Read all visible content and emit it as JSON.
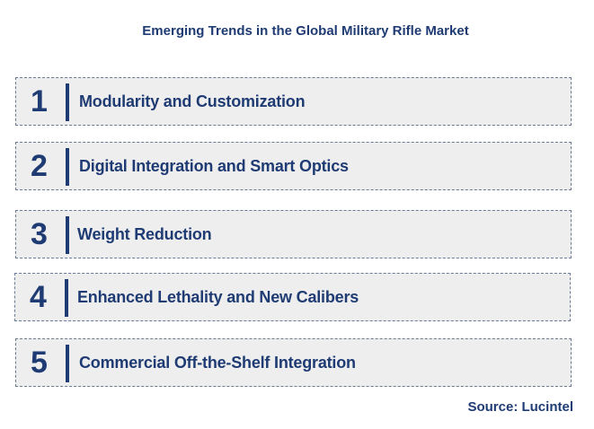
{
  "title": "Emerging Trends in the Global Military Rifle Market",
  "trends": [
    {
      "number": "1",
      "label": "Modularity and Customization"
    },
    {
      "number": "2",
      "label": "Digital Integration and Smart Optics"
    },
    {
      "number": "3",
      "label": "Weight Reduction"
    },
    {
      "number": "4",
      "label": "Enhanced Lethality and New Calibers"
    },
    {
      "number": "5",
      "label": "Commercial Off-the-Shelf Integration"
    }
  ],
  "source": "Source: Lucintel",
  "colors": {
    "primary": "#1f3b73",
    "box_background": "#eeeeee",
    "box_border": "#6b7b93"
  }
}
